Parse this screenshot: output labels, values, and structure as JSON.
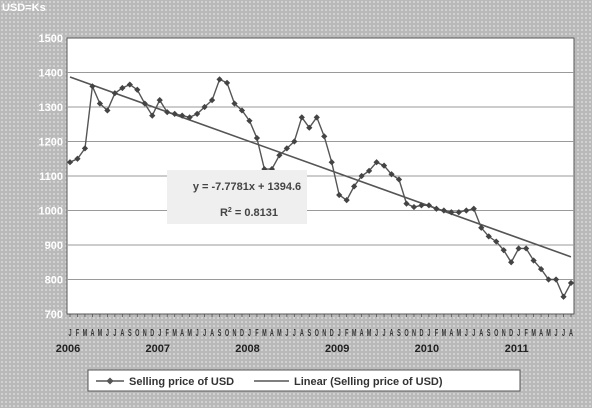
{
  "unit_label": "USD=Ks",
  "chart_data": {
    "type": "line",
    "ylim": [
      700,
      1500
    ],
    "yticks": [
      700,
      800,
      900,
      1000,
      1100,
      1200,
      1300,
      1400,
      1500
    ],
    "grid": true,
    "month_tick_labels": "J F M A M J J A S O N D",
    "year_labels": [
      "2006",
      "2007",
      "2008",
      "2009",
      "2010",
      "2011"
    ],
    "legend_position": "bottom",
    "series": [
      {
        "name": "Selling price of USD",
        "color": "#555555",
        "marker": "diamond",
        "values": [
          1140,
          1150,
          1180,
          1360,
          1310,
          1290,
          1340,
          1355,
          1365,
          1350,
          1310,
          1275,
          1320,
          1285,
          1280,
          1275,
          1270,
          1280,
          1300,
          1320,
          1380,
          1370,
          1310,
          1290,
          1260,
          1210,
          1120,
          1120,
          1160,
          1180,
          1200,
          1270,
          1240,
          1270,
          1215,
          1140,
          1045,
          1030,
          1070,
          1100,
          1115,
          1140,
          1130,
          1105,
          1090,
          1020,
          1010,
          1015,
          1015,
          1005,
          1000,
          995,
          995,
          1000,
          1005,
          950,
          925,
          910,
          885,
          850,
          890,
          890,
          855,
          830,
          800,
          800,
          750,
          790
        ]
      },
      {
        "name": "Linear (Selling price of USD)",
        "type": "trendline",
        "color": "#555555",
        "slope": -7.7781,
        "intercept": 1394.6
      }
    ],
    "annotation": {
      "equation": "y = -7.7781x + 1394.6",
      "r_squared_label": "R",
      "r_squared_sup": "2",
      "r_squared_value": " = 0.8131"
    }
  }
}
